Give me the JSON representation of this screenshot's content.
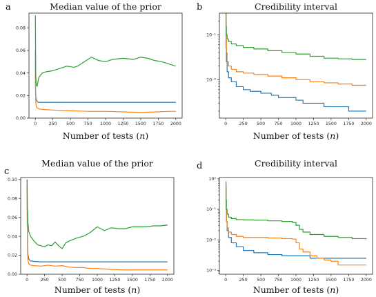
{
  "colors": {
    "blue": "#1f77b4",
    "orange": "#ff7f0e",
    "green": "#2ca02c"
  },
  "chart_data": [
    {
      "panel": "a",
      "type": "line",
      "title": "Median value of the prior",
      "xlabel": "Number of tests (n)",
      "ylabel": "",
      "xlim": [
        -90,
        2090
      ],
      "ylim": [
        0,
        0.093
      ],
      "yscale": "linear",
      "xticks": [
        0,
        250,
        500,
        750,
        1000,
        1250,
        1500,
        1750,
        2000
      ],
      "yticks": [
        0.0,
        0.02,
        0.04,
        0.06,
        0.08
      ],
      "ytick_labels": [
        "0.00",
        "0.02",
        "0.04",
        "0.06",
        "0.08"
      ],
      "series": [
        {
          "color": "blue",
          "x": [
            1,
            4,
            8,
            15,
            25,
            40,
            80,
            200,
            500,
            2000
          ],
          "y": [
            0.06,
            0.025,
            0.018,
            0.016,
            0.015,
            0.014,
            0.014,
            0.014,
            0.014,
            0.014
          ]
        },
        {
          "color": "orange",
          "x": [
            1,
            4,
            8,
            15,
            30,
            60,
            150,
            300,
            500,
            750,
            1000,
            1250,
            1500,
            1750,
            1900,
            2000
          ],
          "y": [
            0.04,
            0.02,
            0.013,
            0.01,
            0.009,
            0.008,
            0.0075,
            0.007,
            0.0065,
            0.006,
            0.006,
            0.0055,
            0.005,
            0.0055,
            0.006,
            0.006
          ]
        },
        {
          "color": "green",
          "x": [
            1,
            3,
            6,
            12,
            25,
            50,
            100,
            150,
            250,
            350,
            450,
            550,
            600,
            700,
            800,
            900,
            1000,
            1100,
            1250,
            1400,
            1500,
            1600,
            1700,
            1800,
            1900,
            2000
          ],
          "y": [
            0.091,
            0.07,
            0.04,
            0.03,
            0.028,
            0.036,
            0.04,
            0.041,
            0.042,
            0.044,
            0.046,
            0.045,
            0.046,
            0.05,
            0.054,
            0.051,
            0.05,
            0.052,
            0.053,
            0.052,
            0.054,
            0.053,
            0.051,
            0.05,
            0.048,
            0.046
          ]
        }
      ]
    },
    {
      "panel": "b",
      "type": "line",
      "title": "Credibility interval",
      "xlabel": "Number of tests (n)",
      "ylabel": "",
      "xlim": [
        -90,
        2090
      ],
      "ylim": [
        0.0014,
        0.3
      ],
      "yscale": "log",
      "xticks": [
        0,
        250,
        500,
        750,
        1000,
        1250,
        1500,
        1750,
        2000
      ],
      "yticks": [
        0.01,
        0.1
      ],
      "ytick_labels": [
        "10⁻²",
        "10⁻¹"
      ],
      "series": [
        {
          "color": "blue",
          "x": [
            1,
            5,
            10,
            20,
            40,
            80,
            150,
            250,
            350,
            500,
            650,
            750,
            900,
            1000,
            1100,
            1250,
            1400,
            1500,
            1600,
            1750,
            1850,
            2000
          ],
          "y": [
            0.2,
            0.05,
            0.025,
            0.015,
            0.011,
            0.009,
            0.007,
            0.006,
            0.0055,
            0.005,
            0.0045,
            0.004,
            0.004,
            0.0035,
            0.003,
            0.003,
            0.0025,
            0.0025,
            0.0025,
            0.002,
            0.002,
            0.002
          ]
        },
        {
          "color": "orange",
          "x": [
            1,
            5,
            10,
            20,
            40,
            80,
            150,
            250,
            400,
            600,
            800,
            1000,
            1200,
            1400,
            1600,
            1800,
            2000
          ],
          "y": [
            0.3,
            0.08,
            0.04,
            0.025,
            0.02,
            0.017,
            0.015,
            0.014,
            0.013,
            0.012,
            0.011,
            0.01,
            0.009,
            0.0085,
            0.008,
            0.0075,
            0.0075
          ]
        },
        {
          "color": "green",
          "x": [
            1,
            5,
            10,
            20,
            40,
            80,
            150,
            250,
            400,
            600,
            800,
            1000,
            1200,
            1400,
            1600,
            1800,
            2000
          ],
          "y": [
            0.6,
            0.15,
            0.1,
            0.08,
            0.07,
            0.062,
            0.057,
            0.052,
            0.048,
            0.044,
            0.04,
            0.037,
            0.033,
            0.03,
            0.029,
            0.028,
            0.028
          ]
        }
      ]
    },
    {
      "panel": "c",
      "type": "line",
      "title": "Median value of the prior",
      "xlabel": "Number of tests (n)",
      "ylabel": "",
      "xlim": [
        -90,
        2090
      ],
      "ylim": [
        0,
        0.102
      ],
      "yscale": "linear",
      "xticks": [
        0,
        250,
        500,
        750,
        1000,
        1250,
        1500,
        1750,
        2000
      ],
      "yticks": [
        0.0,
        0.02,
        0.04,
        0.06,
        0.08,
        0.1
      ],
      "ytick_labels": [
        "0.00",
        "0.02",
        "0.04",
        "0.06",
        "0.08",
        "0.10"
      ],
      "series": [
        {
          "color": "blue",
          "x": [
            1,
            4,
            8,
            15,
            25,
            50,
            100,
            200,
            400,
            800,
            2000
          ],
          "y": [
            0.1,
            0.05,
            0.03,
            0.02,
            0.016,
            0.014,
            0.0135,
            0.013,
            0.013,
            0.013,
            0.013
          ]
        },
        {
          "color": "orange",
          "x": [
            1,
            3,
            6,
            12,
            25,
            50,
            100,
            200,
            300,
            400,
            500,
            600,
            700,
            800,
            900,
            1000,
            1200,
            1400,
            1600,
            1800,
            2000
          ],
          "y": [
            0.095,
            0.06,
            0.03,
            0.015,
            0.011,
            0.0095,
            0.009,
            0.0085,
            0.0095,
            0.0085,
            0.009,
            0.0075,
            0.007,
            0.007,
            0.006,
            0.006,
            0.005,
            0.0045,
            0.0045,
            0.0045,
            0.0045
          ]
        },
        {
          "color": "green",
          "x": [
            1,
            3,
            6,
            12,
            25,
            50,
            100,
            150,
            200,
            250,
            300,
            350,
            400,
            450,
            500,
            550,
            600,
            700,
            800,
            900,
            1000,
            1100,
            1200,
            1300,
            1400,
            1500,
            1600,
            1700,
            1800,
            1900,
            2000
          ],
          "y": [
            0.095,
            0.085,
            0.07,
            0.055,
            0.045,
            0.04,
            0.035,
            0.031,
            0.03,
            0.029,
            0.031,
            0.03,
            0.034,
            0.03,
            0.027,
            0.033,
            0.035,
            0.038,
            0.04,
            0.044,
            0.05,
            0.046,
            0.049,
            0.048,
            0.048,
            0.05,
            0.05,
            0.05,
            0.051,
            0.051,
            0.052
          ]
        }
      ]
    },
    {
      "panel": "d",
      "type": "line",
      "title": "Credibility interval",
      "xlabel": "Number of tests (n)",
      "ylabel": "",
      "xlim": [
        -90,
        2090
      ],
      "ylim": [
        0.00075,
        1.1
      ],
      "yscale": "log",
      "xticks": [
        0,
        250,
        500,
        750,
        1000,
        1250,
        1500,
        1750,
        2000
      ],
      "yticks": [
        0.001,
        0.01,
        0.1,
        1
      ],
      "ytick_labels": [
        "10⁻³",
        "10⁻²",
        "10⁻¹",
        "10⁰"
      ],
      "series": [
        {
          "color": "blue",
          "x": [
            1,
            5,
            10,
            20,
            40,
            80,
            150,
            250,
            400,
            600,
            800,
            1000,
            1200,
            1400,
            1600,
            1800,
            2000
          ],
          "y": [
            0.5,
            0.1,
            0.04,
            0.02,
            0.012,
            0.008,
            0.006,
            0.0045,
            0.0038,
            0.0033,
            0.003,
            0.003,
            0.0025,
            0.0025,
            0.0025,
            0.0025,
            0.0025
          ]
        },
        {
          "color": "orange",
          "x": [
            1,
            5,
            10,
            20,
            40,
            80,
            150,
            250,
            400,
            600,
            800,
            950,
            1000,
            1050,
            1100,
            1200,
            1300,
            1400,
            1500,
            1600,
            1700,
            1800,
            2000
          ],
          "y": [
            0.6,
            0.1,
            0.04,
            0.025,
            0.018,
            0.015,
            0.013,
            0.012,
            0.012,
            0.0115,
            0.011,
            0.0105,
            0.008,
            0.005,
            0.004,
            0.003,
            0.0025,
            0.0022,
            0.002,
            0.0015,
            0.0015,
            0.0015,
            0.0015
          ]
        },
        {
          "color": "green",
          "x": [
            1,
            5,
            10,
            20,
            40,
            80,
            150,
            250,
            400,
            600,
            800,
            950,
            1000,
            1050,
            1100,
            1200,
            1400,
            1600,
            1800,
            2000
          ],
          "y": [
            0.8,
            0.2,
            0.1,
            0.07,
            0.055,
            0.05,
            0.046,
            0.045,
            0.044,
            0.042,
            0.04,
            0.037,
            0.03,
            0.022,
            0.018,
            0.015,
            0.013,
            0.012,
            0.011,
            0.0105
          ]
        }
      ]
    }
  ]
}
